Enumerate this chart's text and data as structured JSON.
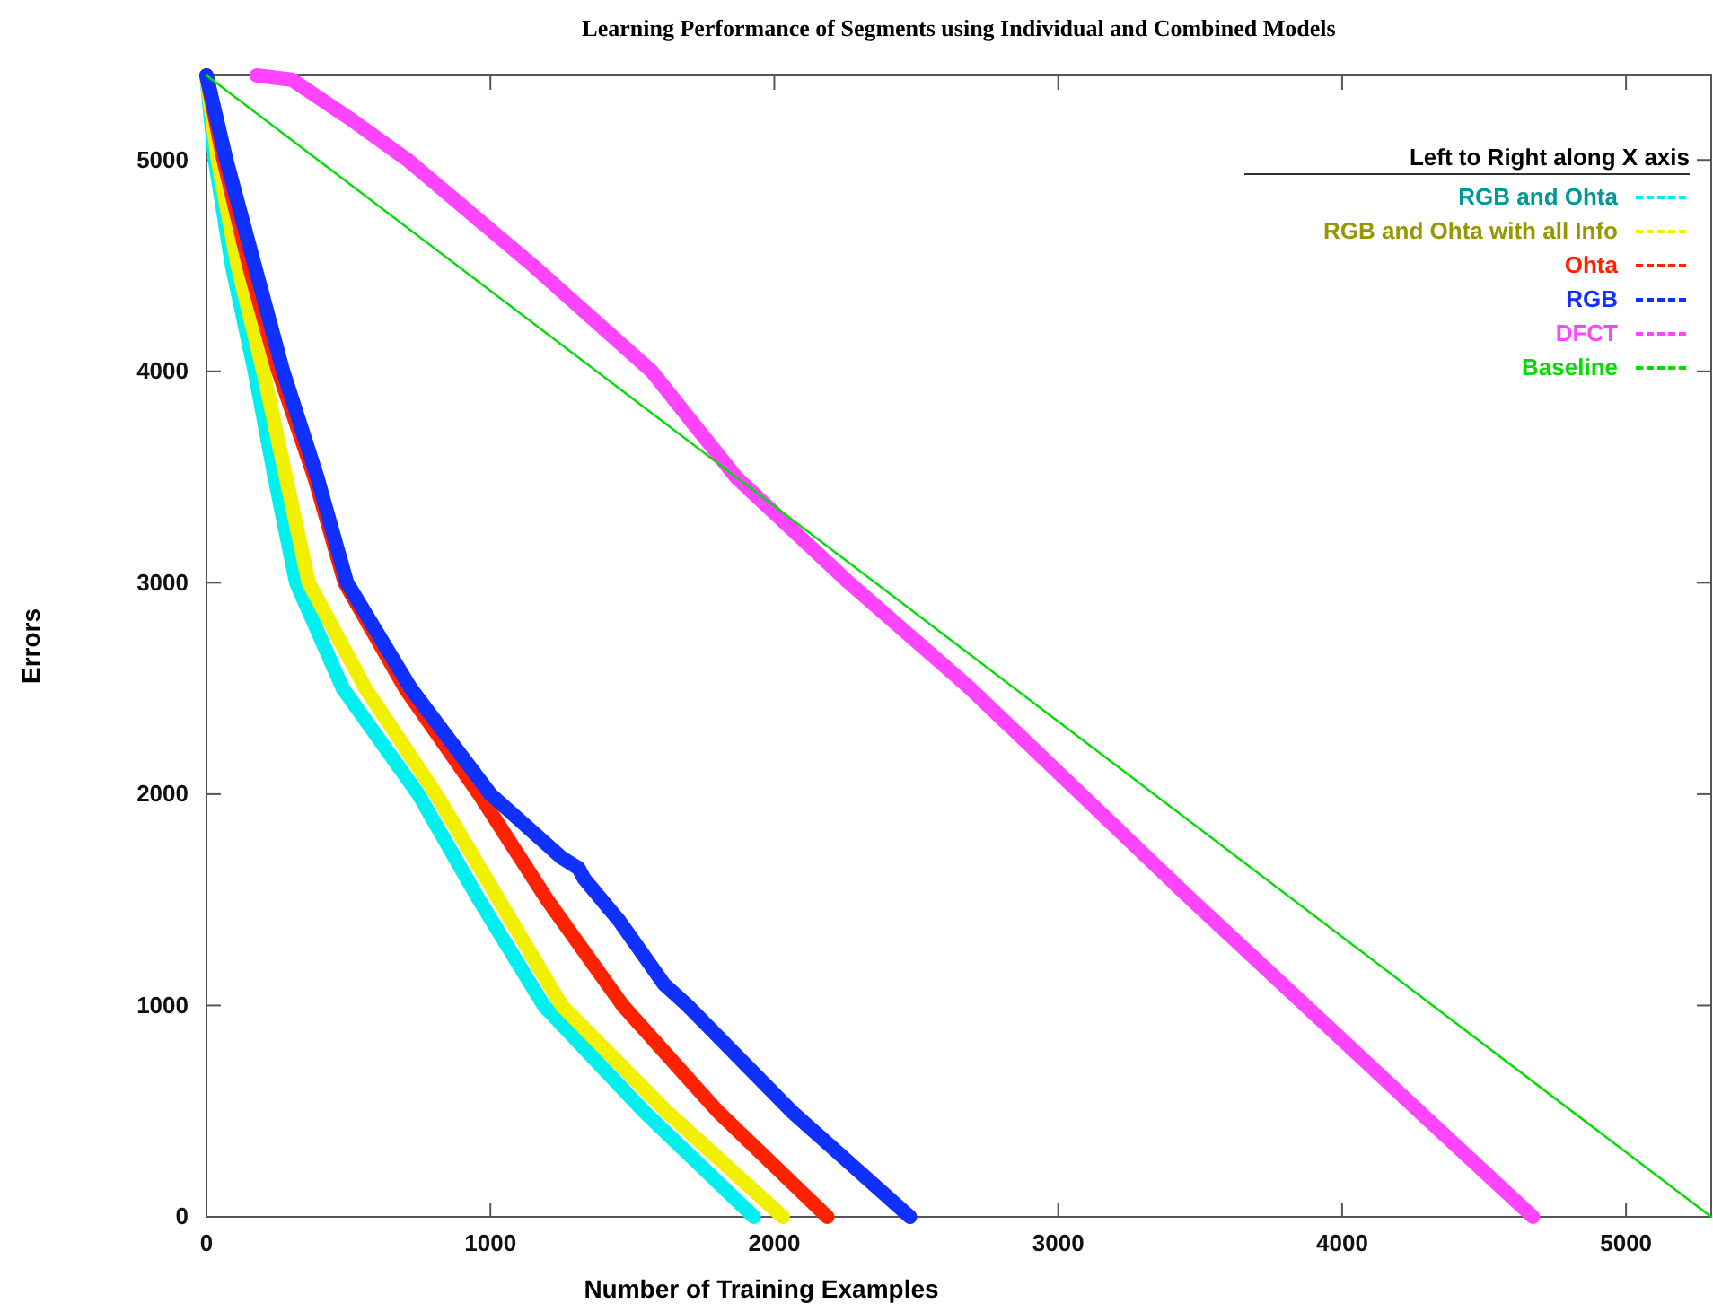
{
  "chart_data": {
    "type": "line",
    "title": "Learning Performance of Segments using Individual and Combined Models",
    "xlabel": "Number of Training Examples",
    "ylabel": "Errors",
    "legend_title": "Left to Right along X axis",
    "legend": "top right",
    "xlim": [
      0,
      5300
    ],
    "ylim": [
      0,
      5400
    ],
    "xticks": [
      0,
      1000,
      2000,
      3000,
      4000,
      5000
    ],
    "yticks": [
      0,
      1000,
      2000,
      3000,
      4000,
      5000
    ],
    "series": [
      {
        "name": "RGB and Ohta",
        "color": "#00f0f0",
        "x": [
          0,
          30,
          90,
          170,
          240,
          316,
          480,
          746,
          960,
          1188,
          1540,
          1928
        ],
        "values": [
          5400,
          5000,
          4500,
          4000,
          3500,
          3000,
          2500,
          2000,
          1500,
          1000,
          500,
          0
        ]
      },
      {
        "name": "RGB and Ohta with all Info",
        "color": "#f0f000",
        "x": [
          0,
          40,
          110,
          200,
          280,
          360,
          560,
          809,
          1030,
          1251,
          1620,
          2030
        ],
        "values": [
          5400,
          5000,
          4500,
          4000,
          3500,
          3000,
          2500,
          2000,
          1500,
          1000,
          500,
          0
        ]
      },
      {
        "name": "Ohta",
        "color": "#ff2200",
        "x": [
          0,
          60,
          150,
          253,
          380,
          487,
          700,
          960,
          1200,
          1466,
          1800,
          2187
        ],
        "values": [
          5400,
          5000,
          4500,
          4000,
          3500,
          3000,
          2500,
          2000,
          1500,
          1000,
          500,
          0
        ]
      },
      {
        "name": "RGB",
        "color": "#1030ff",
        "x": [
          0,
          70,
          170,
          270,
          390,
          495,
          720,
          1000,
          1250,
          1310,
          1330,
          1454,
          1612,
          1694,
          2060,
          2478
        ],
        "values": [
          5400,
          5000,
          4500,
          4000,
          3500,
          3000,
          2500,
          2000,
          1700,
          1650,
          1600,
          1400,
          1100,
          1000,
          500,
          0
        ]
      },
      {
        "name": "DFCT",
        "color": "#ff44ff",
        "x": [
          177,
          300,
          500,
          708,
          1150,
          1568,
          1865,
          2263,
          2690,
          3080,
          3470,
          3870,
          4270,
          4672
        ],
        "values": [
          5400,
          5380,
          5200,
          5000,
          4500,
          4000,
          3500,
          3000,
          2500,
          2000,
          1500,
          1000,
          500,
          0
        ]
      },
      {
        "name": "Baseline",
        "color": "#00dd00",
        "x": [
          0,
          5300
        ],
        "values": [
          5400,
          0
        ]
      }
    ]
  }
}
